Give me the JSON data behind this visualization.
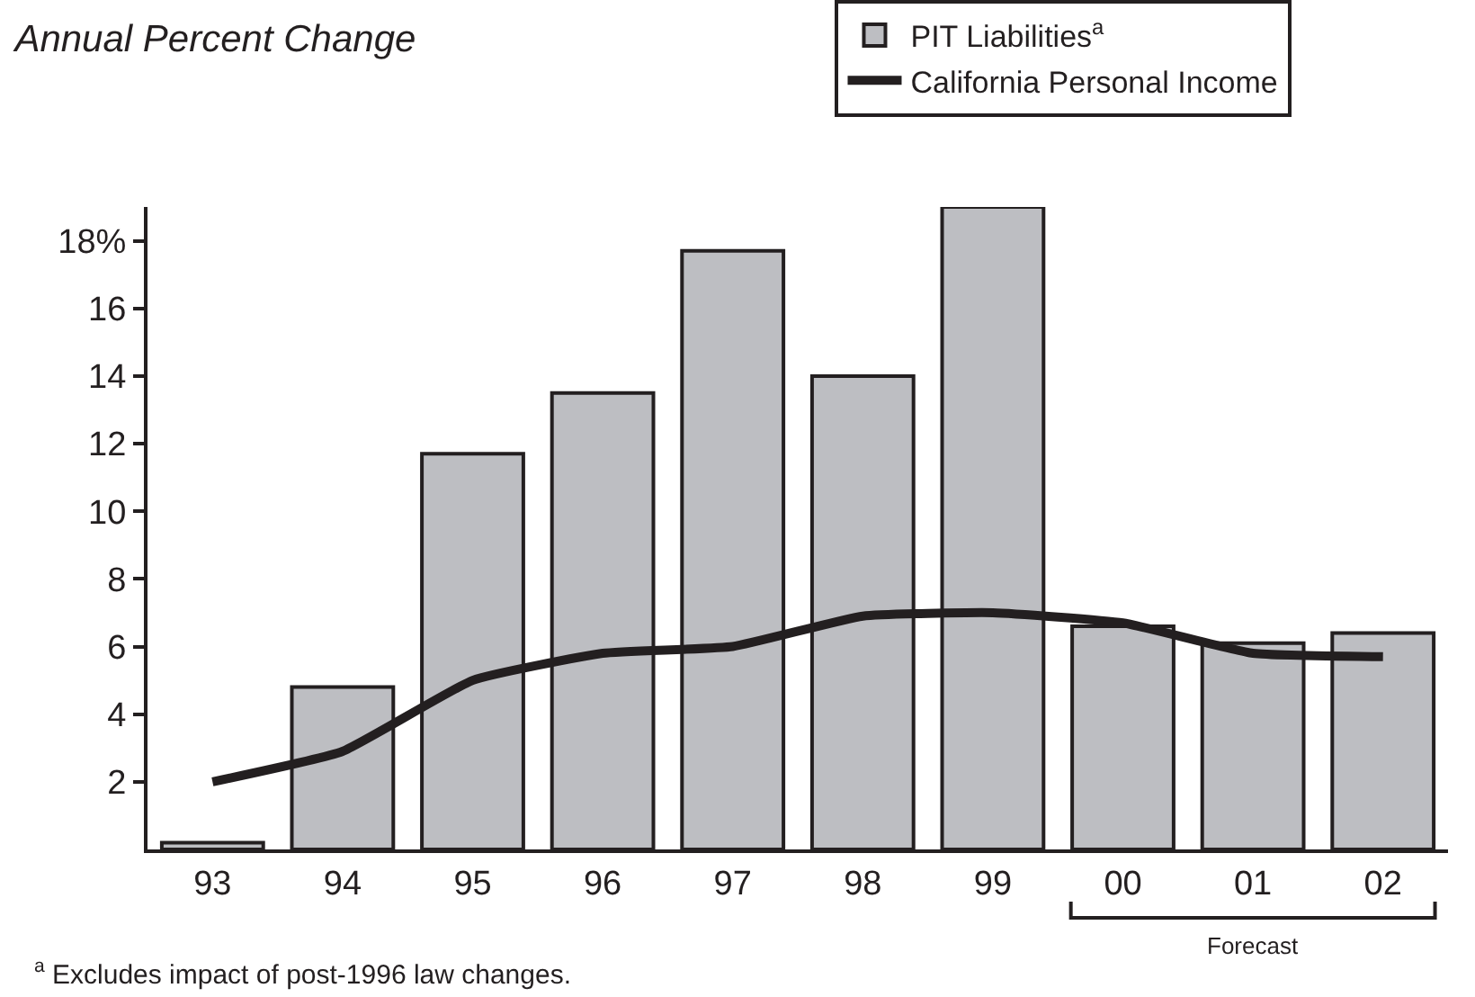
{
  "chart_data": {
    "type": "bar",
    "title": "Annual Percent Change",
    "categories": [
      "93",
      "94",
      "95",
      "96",
      "97",
      "98",
      "99",
      "00",
      "01",
      "02"
    ],
    "series": [
      {
        "name": "PIT Liabilities$^{a}$",
        "color": "#bdbec2",
        "values": [
          0.2,
          4.8,
          11.7,
          13.5,
          17.7,
          14.0,
          19.0,
          6.6,
          6.1,
          6.4
        ]
      },
      {
        "name": "California Personal Income",
        "type": "line",
        "color": "#231f20",
        "values": [
          2.0,
          2.9,
          5.0,
          5.8,
          6.0,
          6.9,
          7.0,
          6.7,
          5.8,
          5.7
        ]
      }
    ],
    "ylim": [
      0,
      19
    ],
    "yticks": [
      2,
      4,
      6,
      8,
      10,
      12,
      14,
      16,
      {
        "value": 18,
        "label": "18%"
      }
    ],
    "legend": "top right",
    "marker": "none",
    "line_style": "solid",
    "annotations": [
      "Forecast",
      "$^{a}$ Excludes impact of post-1996 law changes."
    ]
  }
}
